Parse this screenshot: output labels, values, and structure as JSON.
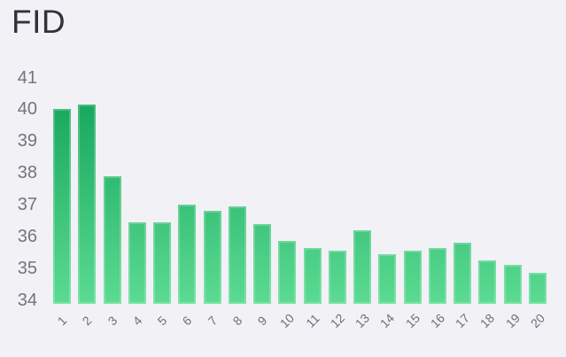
{
  "chart_data": {
    "type": "bar",
    "title": "FID",
    "categories": [
      "1",
      "2",
      "3",
      "4",
      "5",
      "6",
      "7",
      "8",
      "9",
      "10",
      "11",
      "12",
      "13",
      "14",
      "15",
      "16",
      "17",
      "18",
      "19",
      "20"
    ],
    "values": [
      40.0,
      40.15,
      37.9,
      36.45,
      36.45,
      37.0,
      36.8,
      36.95,
      36.4,
      35.85,
      35.65,
      35.55,
      36.2,
      35.45,
      35.55,
      35.65,
      35.8,
      35.25,
      35.1,
      34.85
    ],
    "xlabel": "",
    "ylabel": "",
    "ylim": [
      34,
      41.2
    ],
    "yticks": [
      41,
      40,
      39,
      38,
      37,
      36,
      35,
      34
    ],
    "grid": false,
    "legend": false,
    "x_label_rotation_deg": -45,
    "bar_gradient": {
      "top": "#0d9f56",
      "bottom": "#5cdb92"
    }
  },
  "colors": {
    "background": "#f2f1f6",
    "title_text": "#32323a",
    "y_axis_text": "#74747d",
    "x_axis_text": "#6f6f78",
    "bar_edge_highlight": "rgba(255,255,255,0.22)"
  }
}
